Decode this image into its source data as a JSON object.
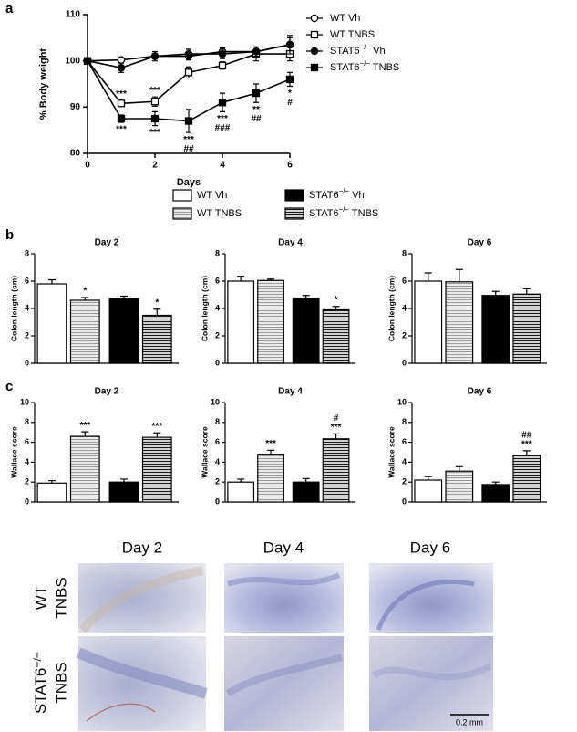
{
  "chart_data": [
    {
      "type": "line",
      "panel_label": "a",
      "x_label": "Days",
      "y_label": "% Body weight",
      "x": [
        0,
        1,
        2,
        3,
        4,
        5,
        6
      ],
      "xlim": [
        0,
        6
      ],
      "xticks": [
        0,
        2,
        4,
        6
      ],
      "ylim": [
        80,
        110
      ],
      "yticks": [
        80,
        90,
        100,
        110
      ],
      "series": [
        {
          "name": "WT Vh",
          "color": "#000000",
          "marker": "circle",
          "filled": false,
          "values": [
            100,
            100.2,
            101,
            101,
            102,
            102,
            103.5
          ],
          "errors": [
            0,
            0.3,
            0.5,
            0.8,
            0.8,
            1,
            1.5
          ]
        },
        {
          "name": "WT TNBS",
          "color": "#000000",
          "marker": "square",
          "filled": false,
          "values": [
            100,
            90.8,
            91.2,
            97.5,
            99,
            101.5,
            101.5
          ],
          "errors": [
            0,
            0.6,
            1,
            1.2,
            0.8,
            1.5,
            1.5
          ],
          "annotations_above": [
            null,
            [
              "***"
            ],
            [
              "***"
            ],
            null,
            null,
            null,
            null
          ]
        },
        {
          "name": "STAT6−/− Vh",
          "color": "#000000",
          "marker": "circle",
          "filled": true,
          "values": [
            100,
            98.5,
            101,
            101.5,
            101.5,
            102,
            103.5
          ],
          "errors": [
            0,
            1,
            1,
            1,
            1,
            1,
            2
          ]
        },
        {
          "name": "STAT6−/− TNBS",
          "color": "#000000",
          "marker": "square",
          "filled": true,
          "values": [
            100,
            87.5,
            87.5,
            87,
            91,
            93,
            96
          ],
          "errors": [
            0,
            0.8,
            1.5,
            2.5,
            2,
            2,
            1.5
          ],
          "annotations_below": [
            null,
            [
              "***"
            ],
            [
              "***"
            ],
            [
              "***",
              "##"
            ],
            [
              "***",
              "###"
            ],
            [
              "**",
              "##"
            ],
            [
              "*",
              "#"
            ]
          ]
        }
      ]
    },
    {
      "type": "bar",
      "panel_label": "b",
      "title": "Day 2",
      "y_label": "Colon length (cm)",
      "ylim": [
        0,
        8
      ],
      "yticks": [
        0,
        2,
        4,
        6,
        8
      ],
      "values": [
        5.8,
        4.6,
        4.75,
        3.5
      ],
      "errors": [
        0.3,
        0.2,
        0.15,
        0.45
      ],
      "annotations": [
        null,
        [
          "*"
        ],
        null,
        [
          "*"
        ]
      ]
    },
    {
      "type": "bar",
      "title": "Day 4",
      "y_label": "Colon length (cm)",
      "ylim": [
        0,
        8
      ],
      "yticks": [
        0,
        2,
        4,
        6,
        8
      ],
      "values": [
        6.0,
        6.05,
        4.75,
        3.9
      ],
      "errors": [
        0.35,
        0.1,
        0.2,
        0.25
      ],
      "annotations": [
        null,
        null,
        null,
        [
          "*"
        ]
      ]
    },
    {
      "type": "bar",
      "title": "Day 6",
      "y_label": "Colon length (cm)",
      "ylim": [
        0,
        8
      ],
      "yticks": [
        0,
        2,
        4,
        6,
        8
      ],
      "values": [
        6.0,
        5.95,
        4.95,
        5.05
      ],
      "errors": [
        0.6,
        0.9,
        0.3,
        0.4
      ]
    },
    {
      "type": "bar",
      "panel_label": "c",
      "title": "Day 2",
      "y_label": "Wallace score",
      "ylim": [
        0,
        10
      ],
      "yticks": [
        0,
        2,
        4,
        6,
        8,
        10
      ],
      "values": [
        1.9,
        6.6,
        2.0,
        6.5
      ],
      "errors": [
        0.25,
        0.45,
        0.3,
        0.45
      ],
      "annotations": [
        null,
        [
          "***"
        ],
        null,
        [
          "***"
        ]
      ]
    },
    {
      "type": "bar",
      "title": "Day 4",
      "y_label": "Wallace score",
      "ylim": [
        0,
        10
      ],
      "yticks": [
        0,
        2,
        4,
        6,
        8,
        10
      ],
      "values": [
        2.0,
        4.8,
        2.0,
        6.35
      ],
      "errors": [
        0.3,
        0.4,
        0.35,
        0.5
      ],
      "annotations": [
        null,
        [
          "***"
        ],
        null,
        [
          "#",
          "***"
        ]
      ]
    },
    {
      "type": "bar",
      "title": "Day 6",
      "y_label": "Wallace score",
      "ylim": [
        0,
        10
      ],
      "yticks": [
        0,
        2,
        4,
        6,
        8,
        10
      ],
      "values": [
        2.2,
        3.1,
        1.75,
        4.7
      ],
      "errors": [
        0.35,
        0.45,
        0.25,
        0.45
      ],
      "annotations": [
        null,
        null,
        null,
        [
          "##",
          "***"
        ]
      ]
    }
  ],
  "bar_groups": [
    {
      "name": "WT Vh",
      "color": "#ffffff"
    },
    {
      "name": "WT TNBS",
      "color": "#9a9a9a",
      "pattern": "horizontal-lines"
    },
    {
      "name": "STAT6−/− Vh",
      "color": "#000000"
    },
    {
      "name": "STAT6−/− TNBS",
      "color": "#1a1a1a",
      "pattern": "horizontal-lines"
    }
  ],
  "histology": {
    "columns": [
      "Day 2",
      "Day 4",
      "Day 6"
    ],
    "rows": [
      {
        "lines": [
          "WT",
          "TNBS"
        ]
      },
      {
        "lines": [
          "STAT6−/−",
          "TNBS"
        ]
      }
    ],
    "scale_bar": "0.2 mm"
  }
}
